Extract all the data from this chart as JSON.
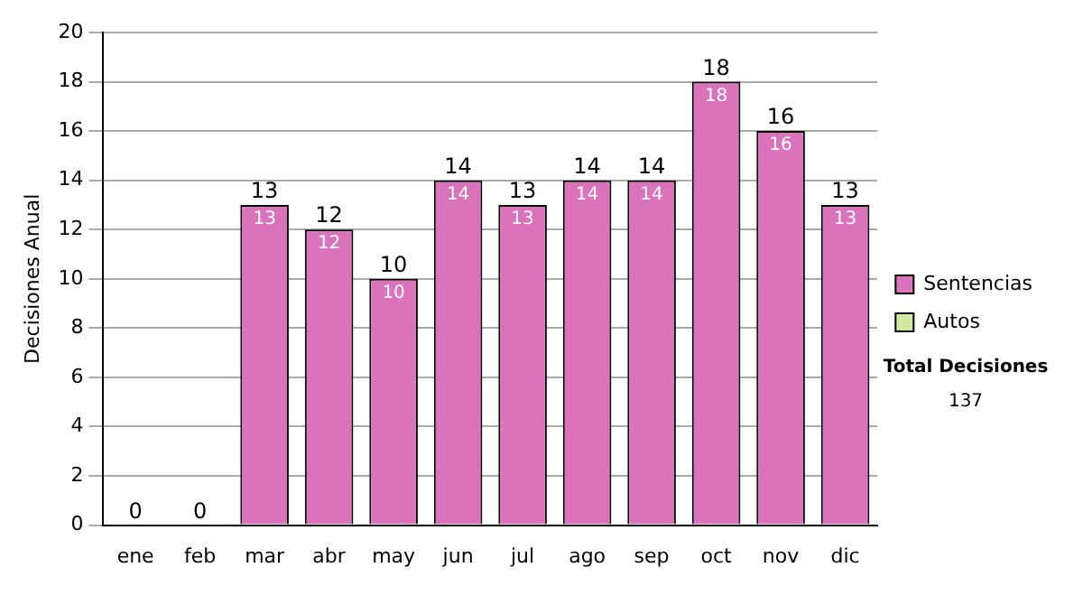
{
  "chart_data": {
    "type": "bar",
    "stacked": true,
    "ylabel": "Decisiones Anual",
    "categories": [
      "ene",
      "feb",
      "mar",
      "abr",
      "may",
      "jun",
      "jul",
      "ago",
      "sep",
      "oct",
      "nov",
      "dic"
    ],
    "series": [
      {
        "name": "Sentencias",
        "color": "#da72bc",
        "values": [
          0,
          0,
          13,
          12,
          10,
          14,
          13,
          14,
          14,
          18,
          16,
          13
        ],
        "value_labels": [
          null,
          null,
          "13",
          "12",
          "10",
          "14",
          "13",
          "14",
          "14",
          "18",
          "16",
          "13"
        ]
      },
      {
        "name": "Autos",
        "color": "#d4e8a0",
        "values": [
          0,
          0,
          0,
          0,
          0,
          0,
          0,
          0,
          0,
          0,
          0,
          0
        ]
      }
    ],
    "totals": [
      "0",
      "0",
      "13",
      "12",
      "10",
      "14",
      "13",
      "14",
      "14",
      "18",
      "16",
      "13"
    ],
    "ylim": [
      0,
      20
    ],
    "yticks": [
      0,
      2,
      4,
      6,
      8,
      10,
      12,
      14,
      16,
      18,
      20
    ],
    "grid": "y",
    "legend": "right",
    "annotations": [
      "Total Decisiones",
      "137"
    ]
  }
}
